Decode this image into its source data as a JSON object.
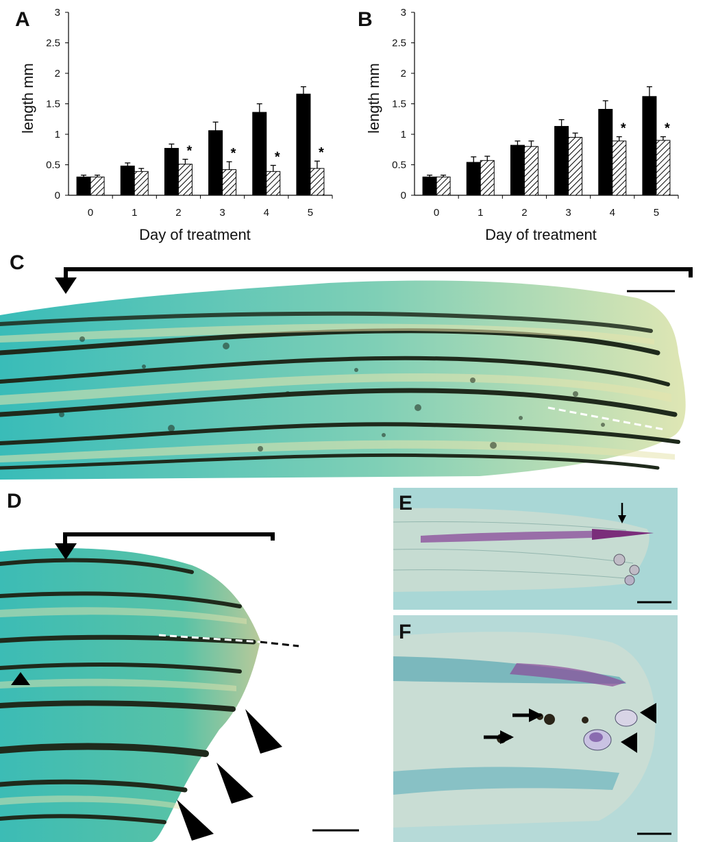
{
  "panels": {
    "a": "A",
    "b": "B",
    "c": "C",
    "d": "D",
    "e": "E",
    "f": "F"
  },
  "chart_data": [
    {
      "type": "bar",
      "panel": "A",
      "categories": [
        "0",
        "1",
        "2",
        "3",
        "4",
        "5"
      ],
      "series": [
        {
          "values": [
            0.3,
            0.48,
            0.77,
            1.06,
            1.36,
            1.66
          ],
          "errors": [
            0.03,
            0.05,
            0.07,
            0.14,
            0.14,
            0.12
          ],
          "fill": "solid"
        },
        {
          "values": [
            0.3,
            0.39,
            0.51,
            0.42,
            0.39,
            0.44
          ],
          "errors": [
            0.03,
            0.05,
            0.08,
            0.13,
            0.1,
            0.12
          ],
          "fill": "hatched"
        }
      ],
      "significance": [
        "",
        "",
        "*",
        "*",
        "*",
        "*"
      ],
      "xlabel": "Day of treatment",
      "ylabel": "length mm",
      "yticks": [
        "0",
        "0.5",
        "1",
        "1.5",
        "2",
        "2.5",
        "3"
      ],
      "ylim": [
        0,
        3
      ],
      "grid": false
    },
    {
      "type": "bar",
      "panel": "B",
      "categories": [
        "0",
        "1",
        "2",
        "3",
        "4",
        "5"
      ],
      "series": [
        {
          "values": [
            0.3,
            0.54,
            0.82,
            1.13,
            1.41,
            1.62
          ],
          "errors": [
            0.03,
            0.09,
            0.07,
            0.11,
            0.14,
            0.16
          ],
          "fill": "solid"
        },
        {
          "values": [
            0.3,
            0.57,
            0.8,
            0.95,
            0.89,
            0.9
          ],
          "errors": [
            0.03,
            0.07,
            0.09,
            0.07,
            0.07,
            0.06
          ],
          "fill": "hatched"
        }
      ],
      "significance": [
        "",
        "",
        "",
        "",
        "*",
        "*"
      ],
      "xlabel": "Day of treatment",
      "ylabel": "length mm",
      "yticks": [
        "0",
        "0.5",
        "1",
        "1.5",
        "2",
        "2.5",
        "3"
      ],
      "ylim": [
        0,
        3
      ],
      "grid": false
    }
  ],
  "colors": {
    "tissue_cyan": "#4fc4bd",
    "tissue_pale": "#d9e0a8",
    "pigment": "#1f2a1c",
    "stain_purple": "#8a4a9a",
    "section_bg": "#a9d7d6"
  }
}
